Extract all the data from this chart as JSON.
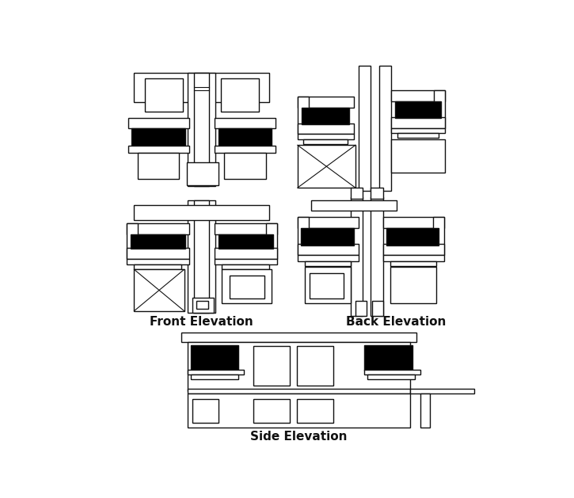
{
  "bg_color": "#ffffff",
  "line_color": "#111111",
  "black_fill": "#000000",
  "title_font_size": 11,
  "labels": {
    "front": "Front Elevation",
    "back": "Back Elevation",
    "side": "Side Elevation"
  }
}
